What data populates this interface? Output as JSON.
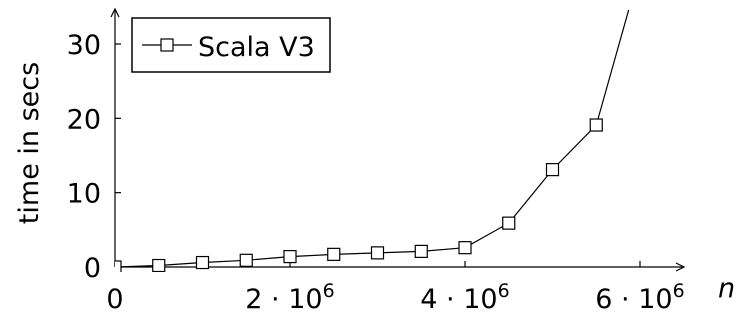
{
  "chart_data": {
    "type": "line",
    "xlabel": "n",
    "ylabel": "time in secs",
    "xlim": [
      0,
      6200000
    ],
    "ylim": [
      0,
      35
    ],
    "x_ticks": [
      {
        "value": 0,
        "label": "0",
        "exp": ""
      },
      {
        "value": 2000000,
        "label": "2 · 10",
        "exp": "6"
      },
      {
        "value": 4000000,
        "label": "4 · 10",
        "exp": "6"
      },
      {
        "value": 6000000,
        "label": "6 · 10",
        "exp": "6"
      }
    ],
    "y_ticks": [
      {
        "value": 0,
        "label": "0"
      },
      {
        "value": 10,
        "label": "10"
      },
      {
        "value": 20,
        "label": "20"
      },
      {
        "value": 30,
        "label": "30"
      }
    ],
    "legend": {
      "placement": "top-left"
    },
    "grid": false,
    "series": [
      {
        "name": "Scala V3",
        "color": "#000000",
        "marker": "open-square",
        "points": [
          {
            "x": 0,
            "y": 0
          },
          {
            "x": 500000,
            "y": 0.2
          },
          {
            "x": 1000000,
            "y": 0.6
          },
          {
            "x": 1500000,
            "y": 0.9
          },
          {
            "x": 2000000,
            "y": 1.4
          },
          {
            "x": 2500000,
            "y": 1.7
          },
          {
            "x": 3000000,
            "y": 1.9
          },
          {
            "x": 3500000,
            "y": 2.1
          },
          {
            "x": 4000000,
            "y": 2.6
          },
          {
            "x": 4500000,
            "y": 5.9
          },
          {
            "x": 5000000,
            "y": 13.1
          },
          {
            "x": 5500000,
            "y": 19.1
          },
          {
            "x": 6000000,
            "y": 40
          }
        ]
      }
    ]
  }
}
